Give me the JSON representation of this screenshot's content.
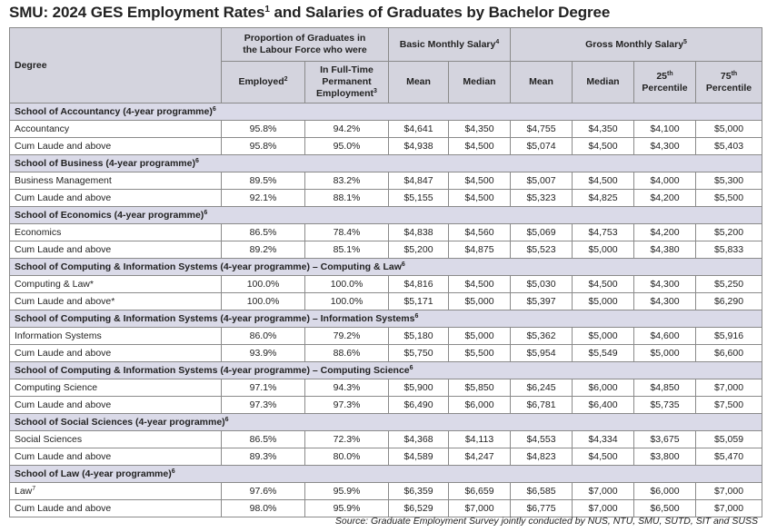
{
  "title": {
    "prefix": "SMU: 2024 GES Employment Rates",
    "sup": "1",
    "suffix": " and Salaries of Graduates by Bachelor Degree"
  },
  "header": {
    "degree": "Degree",
    "proportion_line1": "Proportion of Graduates in",
    "proportion_line2": "the Labour Force who were",
    "basic": "Basic Monthly Salary",
    "basic_sup": "4",
    "gross": "Gross Monthly Salary",
    "gross_sup": "5",
    "employed": "Employed",
    "employed_sup": "2",
    "fulltime_line1": "In Full-Time",
    "fulltime_line2": "Permanent",
    "fulltime_line3": "Employment",
    "fulltime_sup": "3",
    "mean": "Mean",
    "median": "Median",
    "p25_num": "25",
    "p75_num": "75",
    "th": "th",
    "percentile": "Percentile"
  },
  "sections": [
    {
      "title": "School of Accountancy (4-year programme)",
      "sup": "6",
      "rows": [
        {
          "degree": "Accountancy",
          "sup": "",
          "cells": [
            "95.8%",
            "94.2%",
            "$4,641",
            "$4,350",
            "$4,755",
            "$4,350",
            "$4,100",
            "$5,000"
          ]
        },
        {
          "degree": "Cum Laude and above",
          "sup": "",
          "cells": [
            "95.8%",
            "95.0%",
            "$4,938",
            "$4,500",
            "$5,074",
            "$4,500",
            "$4,300",
            "$5,403"
          ]
        }
      ]
    },
    {
      "title": "School of Business (4-year programme)",
      "sup": "6",
      "rows": [
        {
          "degree": "Business Management",
          "sup": "",
          "cells": [
            "89.5%",
            "83.2%",
            "$4,847",
            "$4,500",
            "$5,007",
            "$4,500",
            "$4,000",
            "$5,300"
          ]
        },
        {
          "degree": "Cum Laude and above",
          "sup": "",
          "cells": [
            "92.1%",
            "88.1%",
            "$5,155",
            "$4,500",
            "$5,323",
            "$4,825",
            "$4,200",
            "$5,500"
          ]
        }
      ]
    },
    {
      "title": "School of Economics (4-year programme)",
      "sup": "6",
      "rows": [
        {
          "degree": "Economics",
          "sup": "",
          "cells": [
            "86.5%",
            "78.4%",
            "$4,838",
            "$4,560",
            "$5,069",
            "$4,753",
            "$4,200",
            "$5,200"
          ]
        },
        {
          "degree": "Cum Laude and above",
          "sup": "",
          "cells": [
            "89.2%",
            "85.1%",
            "$5,200",
            "$4,875",
            "$5,523",
            "$5,000",
            "$4,380",
            "$5,833"
          ]
        }
      ]
    },
    {
      "title": "School of Computing & Information Systems (4-year programme) – Computing & Law",
      "sup": "6",
      "rows": [
        {
          "degree": "Computing & Law*",
          "sup": "",
          "cells": [
            "100.0%",
            "100.0%",
            "$4,816",
            "$4,500",
            "$5,030",
            "$4,500",
            "$4,300",
            "$5,250"
          ]
        },
        {
          "degree": "Cum Laude and above*",
          "sup": "",
          "cells": [
            "100.0%",
            "100.0%",
            "$5,171",
            "$5,000",
            "$5,397",
            "$5,000",
            "$4,300",
            "$6,290"
          ]
        }
      ]
    },
    {
      "title": "School of Computing & Information Systems (4-year programme) – Information Systems",
      "sup": "6",
      "rows": [
        {
          "degree": "Information Systems",
          "sup": "",
          "cells": [
            "86.0%",
            "79.2%",
            "$5,180",
            "$5,000",
            "$5,362",
            "$5,000",
            "$4,600",
            "$5,916"
          ]
        },
        {
          "degree": "Cum Laude and above",
          "sup": "",
          "cells": [
            "93.9%",
            "88.6%",
            "$5,750",
            "$5,500",
            "$5,954",
            "$5,549",
            "$5,000",
            "$6,600"
          ]
        }
      ]
    },
    {
      "title": "School of Computing & Information Systems (4-year programme) – Computing Science",
      "sup": "6",
      "rows": [
        {
          "degree": "Computing Science",
          "sup": "",
          "cells": [
            "97.1%",
            "94.3%",
            "$5,900",
            "$5,850",
            "$6,245",
            "$6,000",
            "$4,850",
            "$7,000"
          ]
        },
        {
          "degree": "Cum Laude and above",
          "sup": "",
          "cells": [
            "97.3%",
            "97.3%",
            "$6,490",
            "$6,000",
            "$6,781",
            "$6,400",
            "$5,735",
            "$7,500"
          ]
        }
      ]
    },
    {
      "title": "School of Social Sciences (4-year programme)",
      "sup": "6",
      "rows": [
        {
          "degree": "Social Sciences",
          "sup": "",
          "cells": [
            "86.5%",
            "72.3%",
            "$4,368",
            "$4,113",
            "$4,553",
            "$4,334",
            "$3,675",
            "$5,059"
          ]
        },
        {
          "degree": "Cum Laude and above",
          "sup": "",
          "cells": [
            "89.3%",
            "80.0%",
            "$4,589",
            "$4,247",
            "$4,823",
            "$4,500",
            "$3,800",
            "$5,470"
          ]
        }
      ]
    },
    {
      "title": "School of Law (4-year programme)",
      "sup": "6",
      "rows": [
        {
          "degree": "Law",
          "sup": "7",
          "cells": [
            "97.6%",
            "95.9%",
            "$6,359",
            "$6,659",
            "$6,585",
            "$7,000",
            "$6,000",
            "$7,000"
          ]
        },
        {
          "degree": "Cum Laude and above",
          "sup": "",
          "cells": [
            "98.0%",
            "95.9%",
            "$6,529",
            "$7,000",
            "$6,775",
            "$7,000",
            "$6,500",
            "$7,000"
          ]
        }
      ]
    }
  ],
  "source": "Source: Graduate Employment Survey jointly conducted by NUS, NTU, SMU, SUTD, SIT and SUSS"
}
